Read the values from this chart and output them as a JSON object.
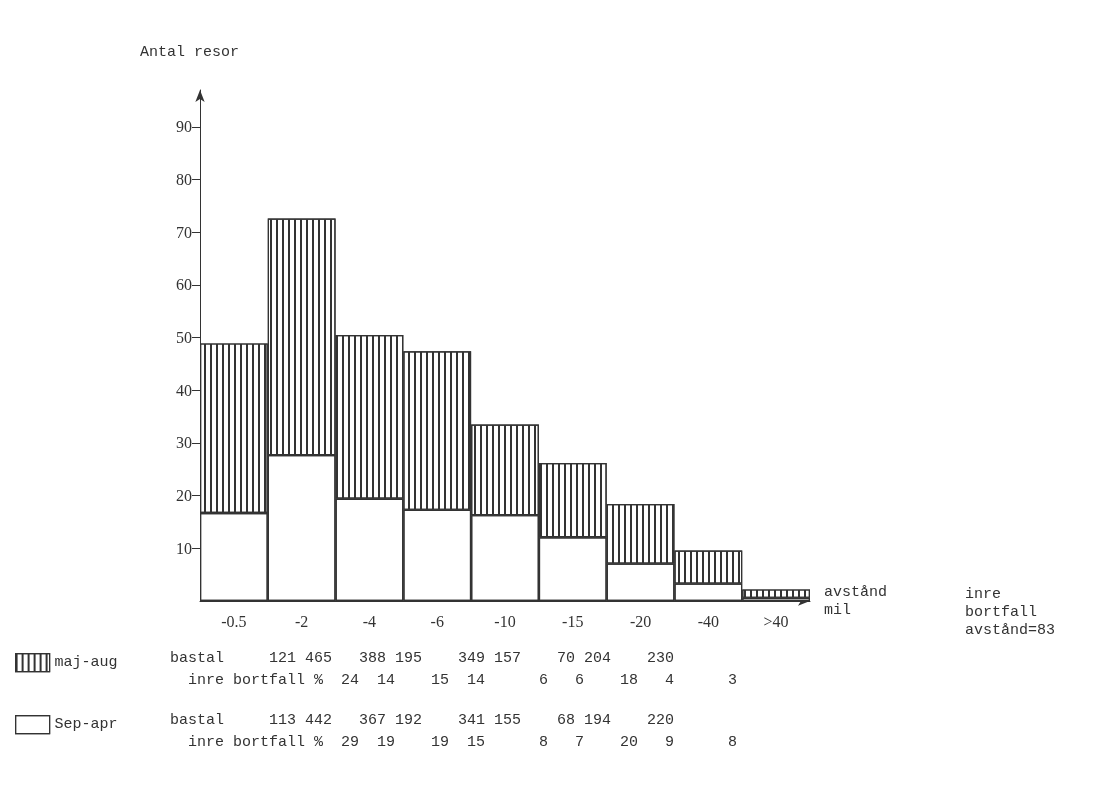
{
  "chart_data": {
    "type": "bar",
    "stacked": true,
    "ylabel": "Antal resor",
    "xlabel": "avstånd\nmil",
    "categories": [
      "-0.5",
      "-2",
      "-4",
      "-6",
      "-10",
      "-15",
      "-20",
      "-40",
      ">40"
    ],
    "series": [
      {
        "name": "Sep-apr",
        "color": "#ffffff",
        "values": [
          16.7,
          27.7,
          19.4,
          17.3,
          16.3,
          12.1,
          7.1,
          3.3,
          0.6
        ]
      },
      {
        "name": "maj-aug",
        "color": "#333333",
        "values": [
          32.2,
          44.9,
          31.1,
          30.1,
          17.2,
          14.1,
          11.3,
          6.3,
          1.6
        ]
      }
    ],
    "ylim": [
      0,
      97
    ],
    "yticks": [
      10,
      20,
      30,
      40,
      50,
      60,
      70,
      80,
      90
    ],
    "grid": false,
    "legend": "bottom",
    "annotations": [
      "inre\nbortfall\navstånd=83",
      "bastal     121 465   388 195    349 157    70 204    230",
      "  inre bortfall %  24  14    15  14      6   6    18   4      3",
      "bastal     113 442   367 192    341 155    68 194    220",
      "  inre bortfall %  29  19    19  15      8   7    20   9      8"
    ]
  }
}
